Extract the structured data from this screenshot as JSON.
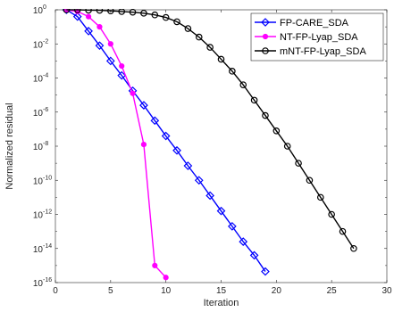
{
  "chart_data": {
    "type": "line",
    "xlabel": "Iteration",
    "ylabel": "Normalized residual",
    "xlim": [
      0,
      30
    ],
    "ylim_exponent": [
      -16,
      0
    ],
    "yscale": "log",
    "legend_position": "top-right",
    "x_ticks": [
      "0",
      "5",
      "10",
      "15",
      "20",
      "25",
      "30"
    ],
    "y_ticks": [
      {
        "base": "10",
        "exp": "0",
        "value": 0
      },
      {
        "base": "10",
        "exp": "-2",
        "value": -2
      },
      {
        "base": "10",
        "exp": "-4",
        "value": -4
      },
      {
        "base": "10",
        "exp": "-6",
        "value": -6
      },
      {
        "base": "10",
        "exp": "-8",
        "value": -8
      },
      {
        "base": "10",
        "exp": "-10",
        "value": -10
      },
      {
        "base": "10",
        "exp": "-12",
        "value": -12
      },
      {
        "base": "10",
        "exp": "-14",
        "value": -14
      },
      {
        "base": "10",
        "exp": "-16",
        "value": -16
      }
    ],
    "series": [
      {
        "name": "FP-CARE_SDA",
        "color": "#0000ff",
        "marker": "diamond",
        "x": [
          1,
          2,
          3,
          4,
          5,
          6,
          7,
          8,
          9,
          10,
          11,
          12,
          13,
          14,
          15,
          16,
          17,
          18,
          19
        ],
        "log10_y": [
          0.0,
          -0.4,
          -1.25,
          -2.1,
          -3.0,
          -3.85,
          -4.75,
          -5.6,
          -6.5,
          -7.4,
          -8.25,
          -9.15,
          -10.0,
          -10.9,
          -11.8,
          -12.7,
          -13.6,
          -14.4,
          -15.35
        ]
      },
      {
        "name": "NT-FP-Lyap_SDA",
        "color": "#ff00ff",
        "marker": "circle-filled",
        "x": [
          1,
          2,
          3,
          4,
          5,
          6,
          7,
          8,
          9,
          10
        ],
        "log10_y": [
          0.0,
          -0.1,
          -0.4,
          -1.0,
          -2.0,
          -3.3,
          -4.9,
          -7.9,
          -15.0,
          -15.7
        ]
      },
      {
        "name": "mNT-FP-Lyap_SDA",
        "color": "#000000",
        "marker": "circle-open",
        "x": [
          1,
          2,
          3,
          4,
          5,
          6,
          7,
          8,
          9,
          10,
          11,
          12,
          13,
          14,
          15,
          16,
          17,
          18,
          19,
          20,
          21,
          22,
          23,
          24,
          25,
          26,
          27
        ],
        "log10_y": [
          0.0,
          0.0,
          -0.02,
          -0.03,
          -0.06,
          -0.1,
          -0.14,
          -0.2,
          -0.3,
          -0.45,
          -0.7,
          -1.1,
          -1.6,
          -2.2,
          -2.9,
          -3.6,
          -4.4,
          -5.3,
          -6.2,
          -7.1,
          -8.0,
          -9.0,
          -10.0,
          -11.0,
          -12.0,
          -13.0,
          -14.0
        ]
      }
    ]
  }
}
